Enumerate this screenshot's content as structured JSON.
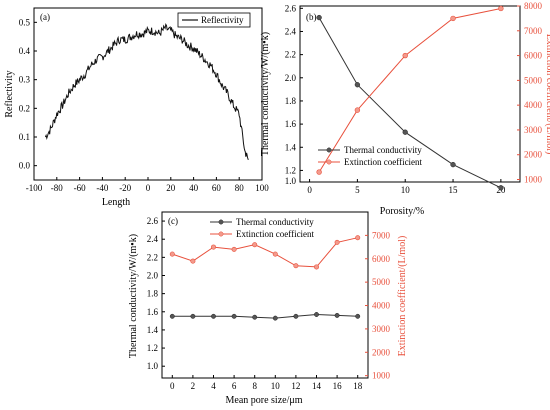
{
  "colors": {
    "black_series": "#333333",
    "red_series": "#e8503c",
    "frame": "#000000"
  },
  "chart_data": [
    {
      "panel": "(a)",
      "type": "line",
      "xlabel": "Length",
      "ylabel": "Reflectivity",
      "xlim": [
        -100,
        100
      ],
      "ylim": [
        -0.05,
        0.55
      ],
      "xticks": [
        "-100",
        "-80",
        "-60",
        "-40",
        "-20",
        "0",
        "20",
        "40",
        "60",
        "80",
        "100"
      ],
      "yticks": [
        "0.0",
        "0.1",
        "0.2",
        "0.3",
        "0.4",
        "0.5"
      ],
      "legend": {
        "position": "top-right",
        "entries": [
          "Reflectivity"
        ]
      },
      "series": [
        {
          "name": "Reflectivity",
          "x": [
            -90,
            -85,
            -80,
            -75,
            -70,
            -65,
            -60,
            -55,
            -50,
            -45,
            -40,
            -35,
            -30,
            -25,
            -20,
            -15,
            -10,
            -5,
            0,
            5,
            10,
            15,
            20,
            25,
            30,
            35,
            40,
            45,
            50,
            55,
            60,
            65,
            70,
            75,
            80,
            85,
            88
          ],
          "y": [
            0.1,
            0.13,
            0.18,
            0.21,
            0.25,
            0.28,
            0.3,
            0.32,
            0.35,
            0.37,
            0.38,
            0.4,
            0.42,
            0.44,
            0.44,
            0.45,
            0.46,
            0.46,
            0.47,
            0.47,
            0.46,
            0.48,
            0.47,
            0.45,
            0.44,
            0.42,
            0.41,
            0.39,
            0.37,
            0.35,
            0.32,
            0.28,
            0.25,
            0.21,
            0.18,
            0.05,
            0.02
          ]
        }
      ]
    },
    {
      "panel": "(b)",
      "type": "line",
      "xlabel": "Porosity/%",
      "ylabel": "Thermal conductivity/W/(m•k)",
      "y2label": "Extinction coefficient/(L/mol)",
      "categories": [
        1,
        5,
        10,
        15,
        20
      ],
      "xticks": [
        "0",
        "5",
        "10",
        "15",
        "20"
      ],
      "xlim": [
        -1,
        22
      ],
      "ylim": [
        1.1,
        2.62
      ],
      "y2lim": [
        900,
        8000
      ],
      "yticks": [
        "1.0",
        "1.2",
        "1.4",
        "1.6",
        "1.8",
        "2.0",
        "2.2",
        "2.4",
        "2.6"
      ],
      "y2ticks": [
        "1000",
        "2000",
        "3000",
        "4000",
        "5000",
        "6000",
        "7000",
        "8000"
      ],
      "legend": {
        "position": "bottom-left",
        "entries": [
          "Thermal conductivity",
          "Extinction coefficient"
        ]
      },
      "series": [
        {
          "name": "Thermal conductivity",
          "axis": "left",
          "values": [
            2.52,
            1.94,
            1.53,
            1.25,
            1.05
          ]
        },
        {
          "name": "Extinction coefficient",
          "axis": "right",
          "values": [
            1300,
            3800,
            6000,
            7500,
            7900
          ]
        }
      ]
    },
    {
      "panel": "(c)",
      "type": "line",
      "xlabel": "Mean pore size/μm",
      "ylabel": "Thermal conductivity/W/(m•k)",
      "y2label": "Extinction coefficient/(L/mol)",
      "categories": [
        0,
        2,
        4,
        6,
        8,
        10,
        12,
        14,
        16,
        18
      ],
      "xticks": [
        "0",
        "2",
        "4",
        "6",
        "8",
        "10",
        "12",
        "14",
        "16",
        "18"
      ],
      "xlim": [
        -1,
        19
      ],
      "ylim": [
        0.87,
        2.7
      ],
      "y2lim": [
        900,
        8000
      ],
      "yticks": [
        "1.0",
        "1.2",
        "1.4",
        "1.6",
        "1.8",
        "2.0",
        "2.2",
        "2.4",
        "2.6"
      ],
      "y2ticks": [
        "1000",
        "2000",
        "3000",
        "4000",
        "5000",
        "6000",
        "7000"
      ],
      "legend": {
        "position": "top-left",
        "entries": [
          "Thermal conductivity",
          "Extinction coefficient"
        ]
      },
      "series": [
        {
          "name": "Thermal conductivity",
          "axis": "left",
          "values": [
            1.55,
            1.55,
            1.55,
            1.55,
            1.54,
            1.53,
            1.55,
            1.57,
            1.56,
            1.55
          ]
        },
        {
          "name": "Extinction coefficient",
          "axis": "right",
          "values": [
            6200,
            5900,
            6500,
            6400,
            6600,
            6200,
            5700,
            5650,
            6700,
            6900
          ]
        }
      ]
    }
  ]
}
